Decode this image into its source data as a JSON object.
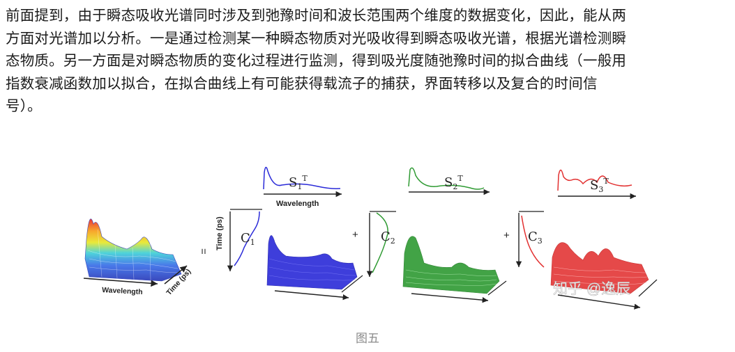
{
  "paragraph": {
    "lines": [
      "前面提到，由于瞬态吸收光谱同时涉及到弛豫时间和波长范围两个维度的数据变化，因此，能从两",
      "方面对光谱加以分析。一是通过检测某一种瞬态物质对光吸收得到瞬态吸收光谱，根据光谱检测瞬",
      "态物质。另一方面是对瞬态物质的变化过程进行监测，得到吸光度随弛豫时间的拟合曲线（一般用",
      "指数衰减函数加以拟合，在拟合曲线上有可能获得载流子的捕获，界面转移以及复合的时间信",
      "号）。"
    ]
  },
  "figure": {
    "left_surface": {
      "wavelength_label": "Wavelength",
      "time_label": "Time (ps)"
    },
    "equals_sign": "=",
    "plus_sign": "+",
    "time_axis_label": "Time (ps)",
    "spectrum_wavelength_label": "Wavelength",
    "components": [
      {
        "spectrum_label": "S",
        "spectrum_sub": "1",
        "spectrum_sup": "T",
        "kinetic_label": "C",
        "kinetic_sub": "1",
        "color": "#2a2ad8"
      },
      {
        "spectrum_label": "S",
        "spectrum_sub": "2",
        "spectrum_sup": "T",
        "kinetic_label": "C",
        "kinetic_sub": "2",
        "color": "#2e9a32"
      },
      {
        "spectrum_label": "S",
        "spectrum_sub": "3",
        "spectrum_sup": "T",
        "kinetic_label": "C",
        "kinetic_sub": "3",
        "color": "#e23030"
      }
    ],
    "watermark": "知乎 @逸辰",
    "caption": "图五"
  }
}
